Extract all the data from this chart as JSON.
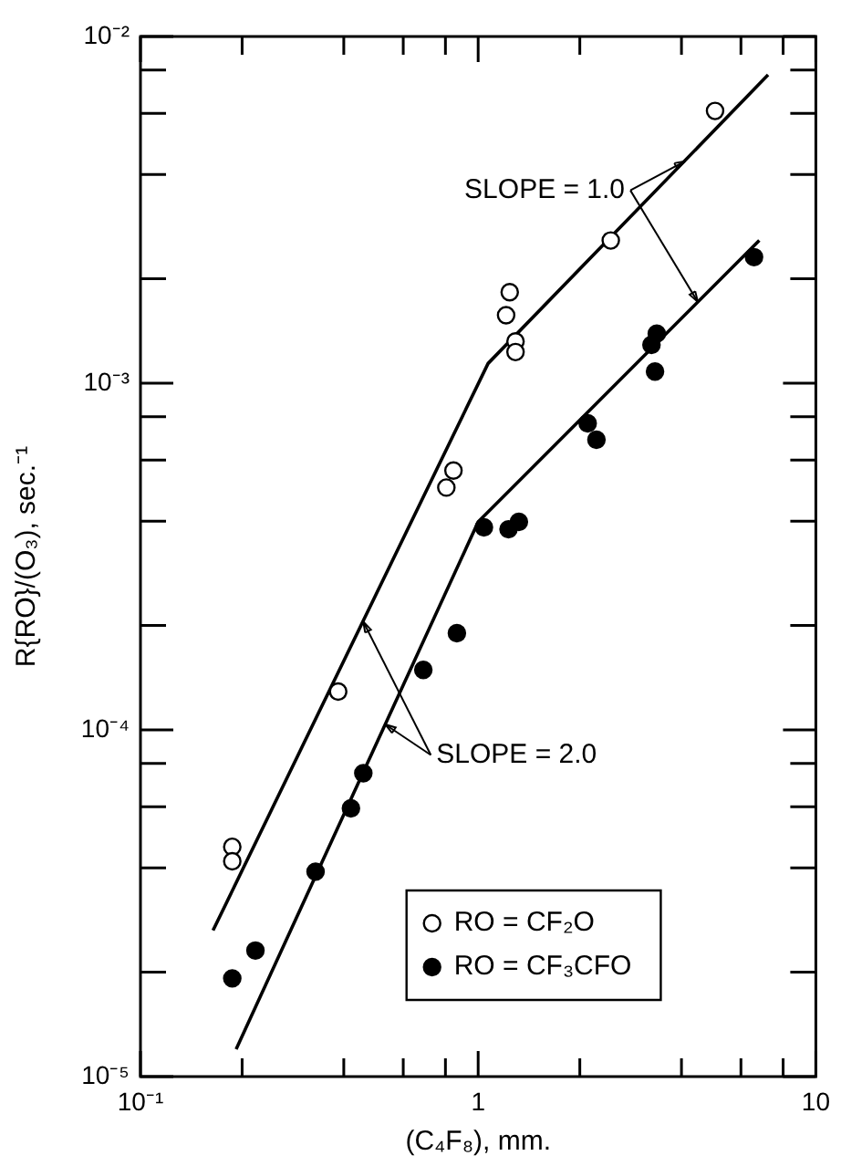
{
  "chart_data": {
    "type": "scatter",
    "xlabel": "(C₄F₈), mm.",
    "ylabel": "R{RO}/(O₃), sec.⁻¹",
    "log": "xy",
    "grid": false,
    "legend": "bottom right",
    "marker": "circle",
    "xlim": [
      0.1,
      10
    ],
    "ylim": [
      1e-05,
      0.01
    ],
    "xticks": [
      {
        "value": 0.1,
        "label": "10⁻¹"
      },
      {
        "value": 0.2,
        "label": null
      },
      {
        "value": 0.4,
        "label": null
      },
      {
        "value": 0.6,
        "label": null
      },
      {
        "value": 0.8,
        "label": null
      },
      1,
      {
        "value": 2,
        "label": null
      },
      {
        "value": 4,
        "label": null
      },
      {
        "value": 6,
        "label": null
      },
      {
        "value": 8,
        "label": null
      },
      10
    ],
    "yticks": [
      {
        "value": 1e-05,
        "label": "10⁻⁵"
      },
      {
        "value": 2e-05,
        "label": null
      },
      {
        "value": 4e-05,
        "label": null
      },
      {
        "value": 6e-05,
        "label": null
      },
      {
        "value": 8e-05,
        "label": null
      },
      {
        "value": 0.0001,
        "label": "10⁻⁴"
      },
      {
        "value": 0.0002,
        "label": null
      },
      {
        "value": 0.0004,
        "label": null
      },
      {
        "value": 0.0006,
        "label": null
      },
      {
        "value": 0.0008,
        "label": null
      },
      {
        "value": 0.001,
        "label": "10⁻³"
      },
      {
        "value": 0.002,
        "label": null
      },
      {
        "value": 0.004,
        "label": null
      },
      {
        "value": 0.006,
        "label": null
      },
      {
        "value": 0.008,
        "label": null
      },
      {
        "value": 0.01,
        "label": "10⁻²"
      }
    ],
    "series": [
      {
        "name": "RO = CF₂O",
        "color": "#ffffff",
        "x": [
          5.03,
          2.47,
          1.24,
          1.21,
          1.29,
          1.29,
          0.845,
          0.805,
          0.385,
          0.187,
          0.187
        ],
        "values": [
          0.0061,
          0.00258,
          0.00183,
          0.00157,
          0.00132,
          0.00123,
          0.00056,
          0.0005,
          0.000129,
          4.6e-05,
          4.18e-05
        ]
      },
      {
        "name": "RO = CF₃CFO",
        "color": "#000000",
        "x": [
          6.56,
          3.38,
          3.26,
          3.34,
          2.11,
          2.24,
          1.04,
          1.23,
          1.32,
          0.865,
          0.688,
          0.457,
          0.42,
          0.33,
          0.219,
          0.187
        ],
        "values": [
          0.00231,
          0.00139,
          0.00129,
          0.00108,
          0.000766,
          0.000687,
          0.000384,
          0.000379,
          0.000398,
          0.00019,
          0.000149,
          7.5e-05,
          5.94e-05,
          3.9e-05,
          2.31e-05,
          1.92e-05
        ]
      },
      {
        "type": "line",
        "marker": "none",
        "color": "#000000",
        "x": [
          0.164,
          1.07,
          7.22
        ],
        "values": [
          2.64e-05,
          0.00114,
          0.00775
        ]
      },
      {
        "type": "line",
        "marker": "none",
        "color": "#000000",
        "x": [
          0.192,
          1.0,
          6.8
        ],
        "values": [
          1.2e-05,
          0.000398,
          0.00258
        ]
      }
    ],
    "annotations": [
      {
        "text": "SLOPE = 1.0",
        "x": 4.1,
        "y": 0.00437
      },
      {
        "text": "SLOPE = 2.0",
        "x": 0.457,
        "y": 0.000205
      }
    ]
  }
}
